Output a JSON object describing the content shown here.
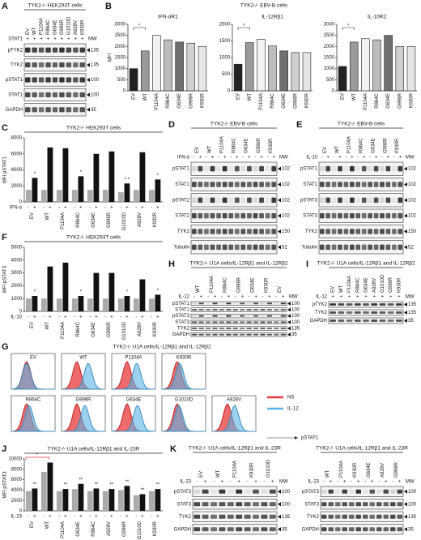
{
  "chart_data": [
    {
      "type": "bar",
      "letter": "B",
      "panel_title": "TYK2-/- EBV-B cells",
      "title": "IFN-αR1",
      "ylabel": "MFI",
      "categories": [
        "EV",
        "WT",
        "P1104A",
        "R864C",
        "G634E",
        "G996R",
        "K930R"
      ],
      "values": [
        1000,
        1800,
        2500,
        2300,
        2200,
        2150,
        2000
      ],
      "colors": [
        "#222222",
        "#9a9a9a",
        "#f2f2f2",
        "#bdbdbd",
        "#6f6f6f",
        "#d0d0d0",
        "#e6e6e6"
      ],
      "ylim": [
        0,
        3000
      ],
      "yticks": [
        0,
        500,
        1000,
        1500,
        2000,
        2500,
        3000
      ],
      "annotation": "*"
    },
    {
      "type": "bar",
      "title": "IL-12Rβ1",
      "categories": [
        "EV",
        "WT",
        "P1104A",
        "R864C",
        "G634E",
        "G996R",
        "K930R"
      ],
      "values": [
        800,
        1450,
        1550,
        1350,
        1200,
        1150,
        1150
      ],
      "colors": [
        "#222222",
        "#9a9a9a",
        "#f2f2f2",
        "#bdbdbd",
        "#6f6f6f",
        "#d0d0d0",
        "#e6e6e6"
      ],
      "ylim": [
        0,
        2000
      ],
      "yticks": [
        0,
        500,
        1000,
        1500,
        2000
      ],
      "annotation": "*"
    },
    {
      "type": "bar",
      "title": "IL-10R2",
      "categories": [
        "EV",
        "WT",
        "P1104A",
        "R864C",
        "G634E",
        "G996R",
        "K930R"
      ],
      "values": [
        1100,
        2200,
        2350,
        2300,
        2500,
        2000,
        2000
      ],
      "colors": [
        "#222222",
        "#9a9a9a",
        "#f2f2f2",
        "#bdbdbd",
        "#6f6f6f",
        "#d0d0d0",
        "#e6e6e6"
      ],
      "ylim": [
        0,
        3000
      ],
      "yticks": [
        0,
        500,
        1000,
        1500,
        2000,
        2500,
        3000
      ],
      "annotation": "*"
    },
    {
      "type": "grouped_bar",
      "letter": "C",
      "title": "TYK2-/- HEK293T cells",
      "ylabel": "MFI pSTAT1",
      "treatment": "IFN-α",
      "categories": [
        "EV",
        "WT",
        "P1104A",
        "R864C",
        "G634E",
        "G996R",
        "G1010D",
        "A928V",
        "K930R"
      ],
      "series": [
        {
          "name": "-",
          "color": "#aaaaaa",
          "values": [
            1500,
            1500,
            1500,
            1500,
            1500,
            1500,
            1200,
            1500,
            1500
          ]
        },
        {
          "name": "+",
          "color": "#111111",
          "values": [
            3000,
            6800,
            6700,
            3200,
            6000,
            6300,
            2300,
            6200,
            2800
          ],
          "marks": [
            "*",
            null,
            null,
            "*",
            null,
            null,
            "* *",
            null,
            "*"
          ]
        }
      ],
      "ylim": [
        0,
        8000
      ],
      "yticks": [
        0,
        2000,
        4000,
        6000,
        8000
      ]
    },
    {
      "type": "grouped_bar",
      "letter": "F",
      "title": "TYK2-/- HEK293T cells",
      "ylabel": "MFI pSTAT3",
      "treatment": "IL-10",
      "categories": [
        "EV",
        "WT",
        "P1104A",
        "R864C",
        "G634E",
        "G996R",
        "G1010D",
        "A928V",
        "K930R"
      ],
      "series": [
        {
          "name": "-",
          "color": "#aaaaaa",
          "values": [
            1000,
            1000,
            1000,
            1000,
            1000,
            1000,
            1000,
            1000,
            1000
          ]
        },
        {
          "name": "+",
          "color": "#111111",
          "values": [
            1200,
            3500,
            3800,
            1200,
            3000,
            3000,
            1200,
            2500,
            1300
          ],
          "marks": [
            "*",
            null,
            null,
            "*",
            null,
            null,
            "*",
            null,
            "*"
          ]
        }
      ],
      "ylim": [
        0,
        5000
      ],
      "yticks": [
        0,
        1000,
        2000,
        3000,
        4000,
        5000
      ]
    },
    {
      "type": "grouped_bar",
      "letter": "J",
      "title": "TYK2-/- U1A cells/IL-12Rβ1 and IL-23R",
      "ylabel": "MFI pSTAT3",
      "treatment": "IL-23",
      "categories": [
        "EV",
        "WT",
        "P1104A",
        "G634E",
        "R864C",
        "A928V",
        "G996R",
        "G1010D",
        "K930R"
      ],
      "series": [
        {
          "name": "-",
          "color": "#aaaaaa",
          "values": [
            3800,
            7500,
            3800,
            4200,
            3800,
            3800,
            4000,
            3000,
            3800
          ]
        },
        {
          "name": "+",
          "color": "#111111",
          "values": [
            4300,
            9300,
            4200,
            5200,
            4300,
            4200,
            4800,
            3200,
            4200
          ],
          "marks": [
            "**",
            null,
            "**",
            "**",
            "**",
            "**",
            "**",
            "**",
            "**"
          ]
        }
      ],
      "ylim": [
        0,
        10000
      ],
      "yticks": [
        0,
        2000,
        4000,
        6000,
        8000,
        10000
      ],
      "annotation": "*",
      "annotation_color": "#e8393b"
    }
  ],
  "blots": [
    {
      "letter": "A",
      "title": "TYK2-/- HEK293T cells",
      "treatment": "STAT1",
      "mw_label": "MW",
      "groups": [
        {
          "name": "EV",
          "signs": [
            "+"
          ]
        },
        {
          "name": "WT",
          "signs": [
            "+"
          ]
        },
        {
          "name": "P1104A",
          "signs": [
            "+"
          ]
        },
        {
          "name": "R864C",
          "signs": [
            "+"
          ]
        },
        {
          "name": "G634E",
          "signs": [
            "+"
          ]
        },
        {
          "name": "G996R",
          "signs": [
            "+"
          ]
        },
        {
          "name": "G1010D",
          "signs": [
            "+"
          ]
        },
        {
          "name": "A928V",
          "signs": [
            "+"
          ]
        },
        {
          "name": "K930R",
          "signs": [
            "+"
          ]
        }
      ],
      "rows": [
        {
          "label": "pTYK2",
          "mw": 135
        },
        {
          "label": "TYK2",
          "mw": 135
        },
        {
          "label": "pSTAT1",
          "mw": 100
        },
        {
          "label": "STAT1",
          "mw": 100
        },
        {
          "label": "GAPDH",
          "mw": 35
        }
      ]
    },
    {
      "letter": "D",
      "title": "TYK2-/- EBV-B cells",
      "treatment": "IFN-α",
      "mw_label": "MW",
      "groups": [
        {
          "name": "EV",
          "signs": [
            "-",
            "+"
          ]
        },
        {
          "name": "WT",
          "signs": [
            "-",
            "+"
          ]
        },
        {
          "name": "P1104A",
          "signs": [
            "-",
            "+"
          ]
        },
        {
          "name": "R864C",
          "signs": [
            "-",
            "+"
          ]
        },
        {
          "name": "G634E",
          "signs": [
            "-",
            "+"
          ]
        },
        {
          "name": "G996R",
          "signs": [
            "-",
            "+"
          ]
        },
        {
          "name": "K930R",
          "signs": [
            "-",
            "+"
          ]
        }
      ],
      "rows": [
        {
          "label": "pSTAT1",
          "mw": 102
        },
        {
          "label": "STAT1",
          "mw": 102
        },
        {
          "label": "pSTAT2",
          "mw": 102
        },
        {
          "label": "STAT2",
          "mw": 102
        },
        {
          "label": "TYK2",
          "mw": 150
        },
        {
          "label": "Tubulin",
          "mw": 52
        }
      ]
    },
    {
      "letter": "E",
      "title": "TYK2-/- EBV-B cells",
      "treatment": "IL-10",
      "mw_label": "MW",
      "groups": [
        {
          "name": "EV",
          "signs": [
            "-",
            "+"
          ]
        },
        {
          "name": "WT",
          "signs": [
            "-",
            "+"
          ]
        },
        {
          "name": "P1104A",
          "signs": [
            "-",
            "+"
          ]
        },
        {
          "name": "R864C",
          "signs": [
            "-",
            "+"
          ]
        },
        {
          "name": "G634E",
          "signs": [
            "-",
            "+"
          ]
        },
        {
          "name": "G996R",
          "signs": [
            "-",
            "+"
          ]
        },
        {
          "name": "K930R",
          "signs": [
            "-",
            "+"
          ]
        }
      ],
      "rows": [
        {
          "label": "pSTAT1",
          "mw": 102
        },
        {
          "label": "STAT1",
          "mw": 102
        },
        {
          "label": "pSTAT3",
          "mw": 102
        },
        {
          "label": "STAT3",
          "mw": 102
        },
        {
          "label": "TYK2",
          "mw": 150
        },
        {
          "label": "Tubulin",
          "mw": 52
        }
      ]
    },
    {
      "letter": "H",
      "title": "TYK2-/- U1A cells/IL-12Rβ1 and IL-12Rβ2",
      "treatment": "IL-12",
      "mw_label": "MW",
      "groups": [
        {
          "name": "WT",
          "signs": [
            "-",
            "+"
          ]
        },
        {
          "name": "P1104A",
          "signs": [
            "-",
            "+"
          ]
        },
        {
          "name": "R864C",
          "signs": [
            "-",
            "+"
          ]
        },
        {
          "name": "G996R",
          "signs": [
            "-",
            "+"
          ]
        },
        {
          "name": "G634E",
          "signs": [
            "-",
            "+"
          ]
        },
        {
          "name": "K930R",
          "signs": [
            "-",
            "+"
          ]
        },
        {
          "name": "EV",
          "signs": [
            "-",
            "+"
          ]
        }
      ],
      "rows": [
        {
          "label": "pSTAT1",
          "mw": 100
        },
        {
          "label": "STAT1",
          "mw": 100
        },
        {
          "label": "pSTAT3",
          "mw": 100
        },
        {
          "label": "STAT3",
          "mw": 100
        },
        {
          "label": "TYK2",
          "mw": 135
        },
        {
          "label": "GAPDH",
          "mw": 35
        }
      ]
    },
    {
      "letter": "I",
      "title": "TYK2-/- U1A cells/IL-12Rβ1 and IL-12Rβ2",
      "treatment": "IL-12",
      "mw_label": "MW",
      "groups": [
        {
          "name": "EV",
          "signs": [
            "+"
          ]
        },
        {
          "name": "WT",
          "signs": [
            "+"
          ]
        },
        {
          "name": "P1104A",
          "signs": [
            "+"
          ]
        },
        {
          "name": "R864C",
          "signs": [
            "+"
          ]
        },
        {
          "name": "G634E",
          "signs": [
            "+"
          ]
        },
        {
          "name": "A928V",
          "signs": [
            "+"
          ]
        },
        {
          "name": "G1010D",
          "signs": [
            "+"
          ]
        },
        {
          "name": "G996R",
          "signs": [
            "+"
          ]
        },
        {
          "name": "K930R",
          "signs": [
            "+"
          ]
        }
      ],
      "rows": [
        {
          "label": "pTYK2",
          "mw": 135
        },
        {
          "label": "TYK2",
          "mw": 135
        },
        {
          "label": "GAPDH",
          "mw": 35
        }
      ]
    },
    {
      "letter": "K",
      "title": "TYK2-/- U1A cells/IL-12Rβ1 and IL-23R",
      "treatment": "IL-23",
      "mw_label": "MW",
      "groups": [
        {
          "name": "EV",
          "signs": [
            "-",
            "+"
          ]
        },
        {
          "name": "WT",
          "signs": [
            "-",
            "+"
          ]
        },
        {
          "name": "P1104A",
          "signs": [
            "-",
            "+"
          ]
        },
        {
          "name": "K930R",
          "signs": [
            "-",
            "+"
          ]
        },
        {
          "name": "G1010D",
          "signs": [
            "-",
            "+"
          ]
        }
      ],
      "rows": [
        {
          "label": "pSTAT3",
          "mw": 100
        },
        {
          "label": "STAT3",
          "mw": 100
        },
        {
          "label": "TYK2",
          "mw": 135
        },
        {
          "label": "GAPDH",
          "mw": 35
        }
      ]
    },
    {
      "title": "TYK2-/- U1A cells/IL-12Rβ1 and IL-23R",
      "treatment": "IL-23",
      "mw_label": "MW",
      "groups": [
        {
          "name": "WT",
          "signs": [
            "-",
            "+"
          ]
        },
        {
          "name": "P1104A",
          "signs": [
            "-",
            "+"
          ]
        },
        {
          "name": "K930R",
          "signs": [
            "-",
            "+"
          ]
        },
        {
          "name": "G634E",
          "signs": [
            "-",
            "+"
          ]
        },
        {
          "name": "A928V",
          "signs": [
            "-",
            "+"
          ]
        },
        {
          "name": "G996R",
          "signs": [
            "-",
            "+"
          ]
        }
      ],
      "rows": [
        {
          "label": "pSTAT3",
          "mw": 100
        },
        {
          "label": "STAT3",
          "mw": 100
        },
        {
          "label": "TYK2",
          "mw": 135
        },
        {
          "label": "GAPDH",
          "mw": 35
        }
      ]
    }
  ],
  "histograms": {
    "letter": "G",
    "title": "TYK2-/- U1A cells/IL-12Rβ1 and IL-12Rβ2",
    "rows": [
      [
        "EV",
        "WT",
        "P1104A",
        "K930R"
      ],
      [
        "R864C",
        "G996R",
        "G634E",
        "G1010D",
        "A928V"
      ]
    ],
    "legend": [
      {
        "name": "NS",
        "color": "#e8393b"
      },
      {
        "name": "IL-12",
        "color": "#5ab4e5"
      }
    ],
    "xlabel": "pSTAT1"
  }
}
